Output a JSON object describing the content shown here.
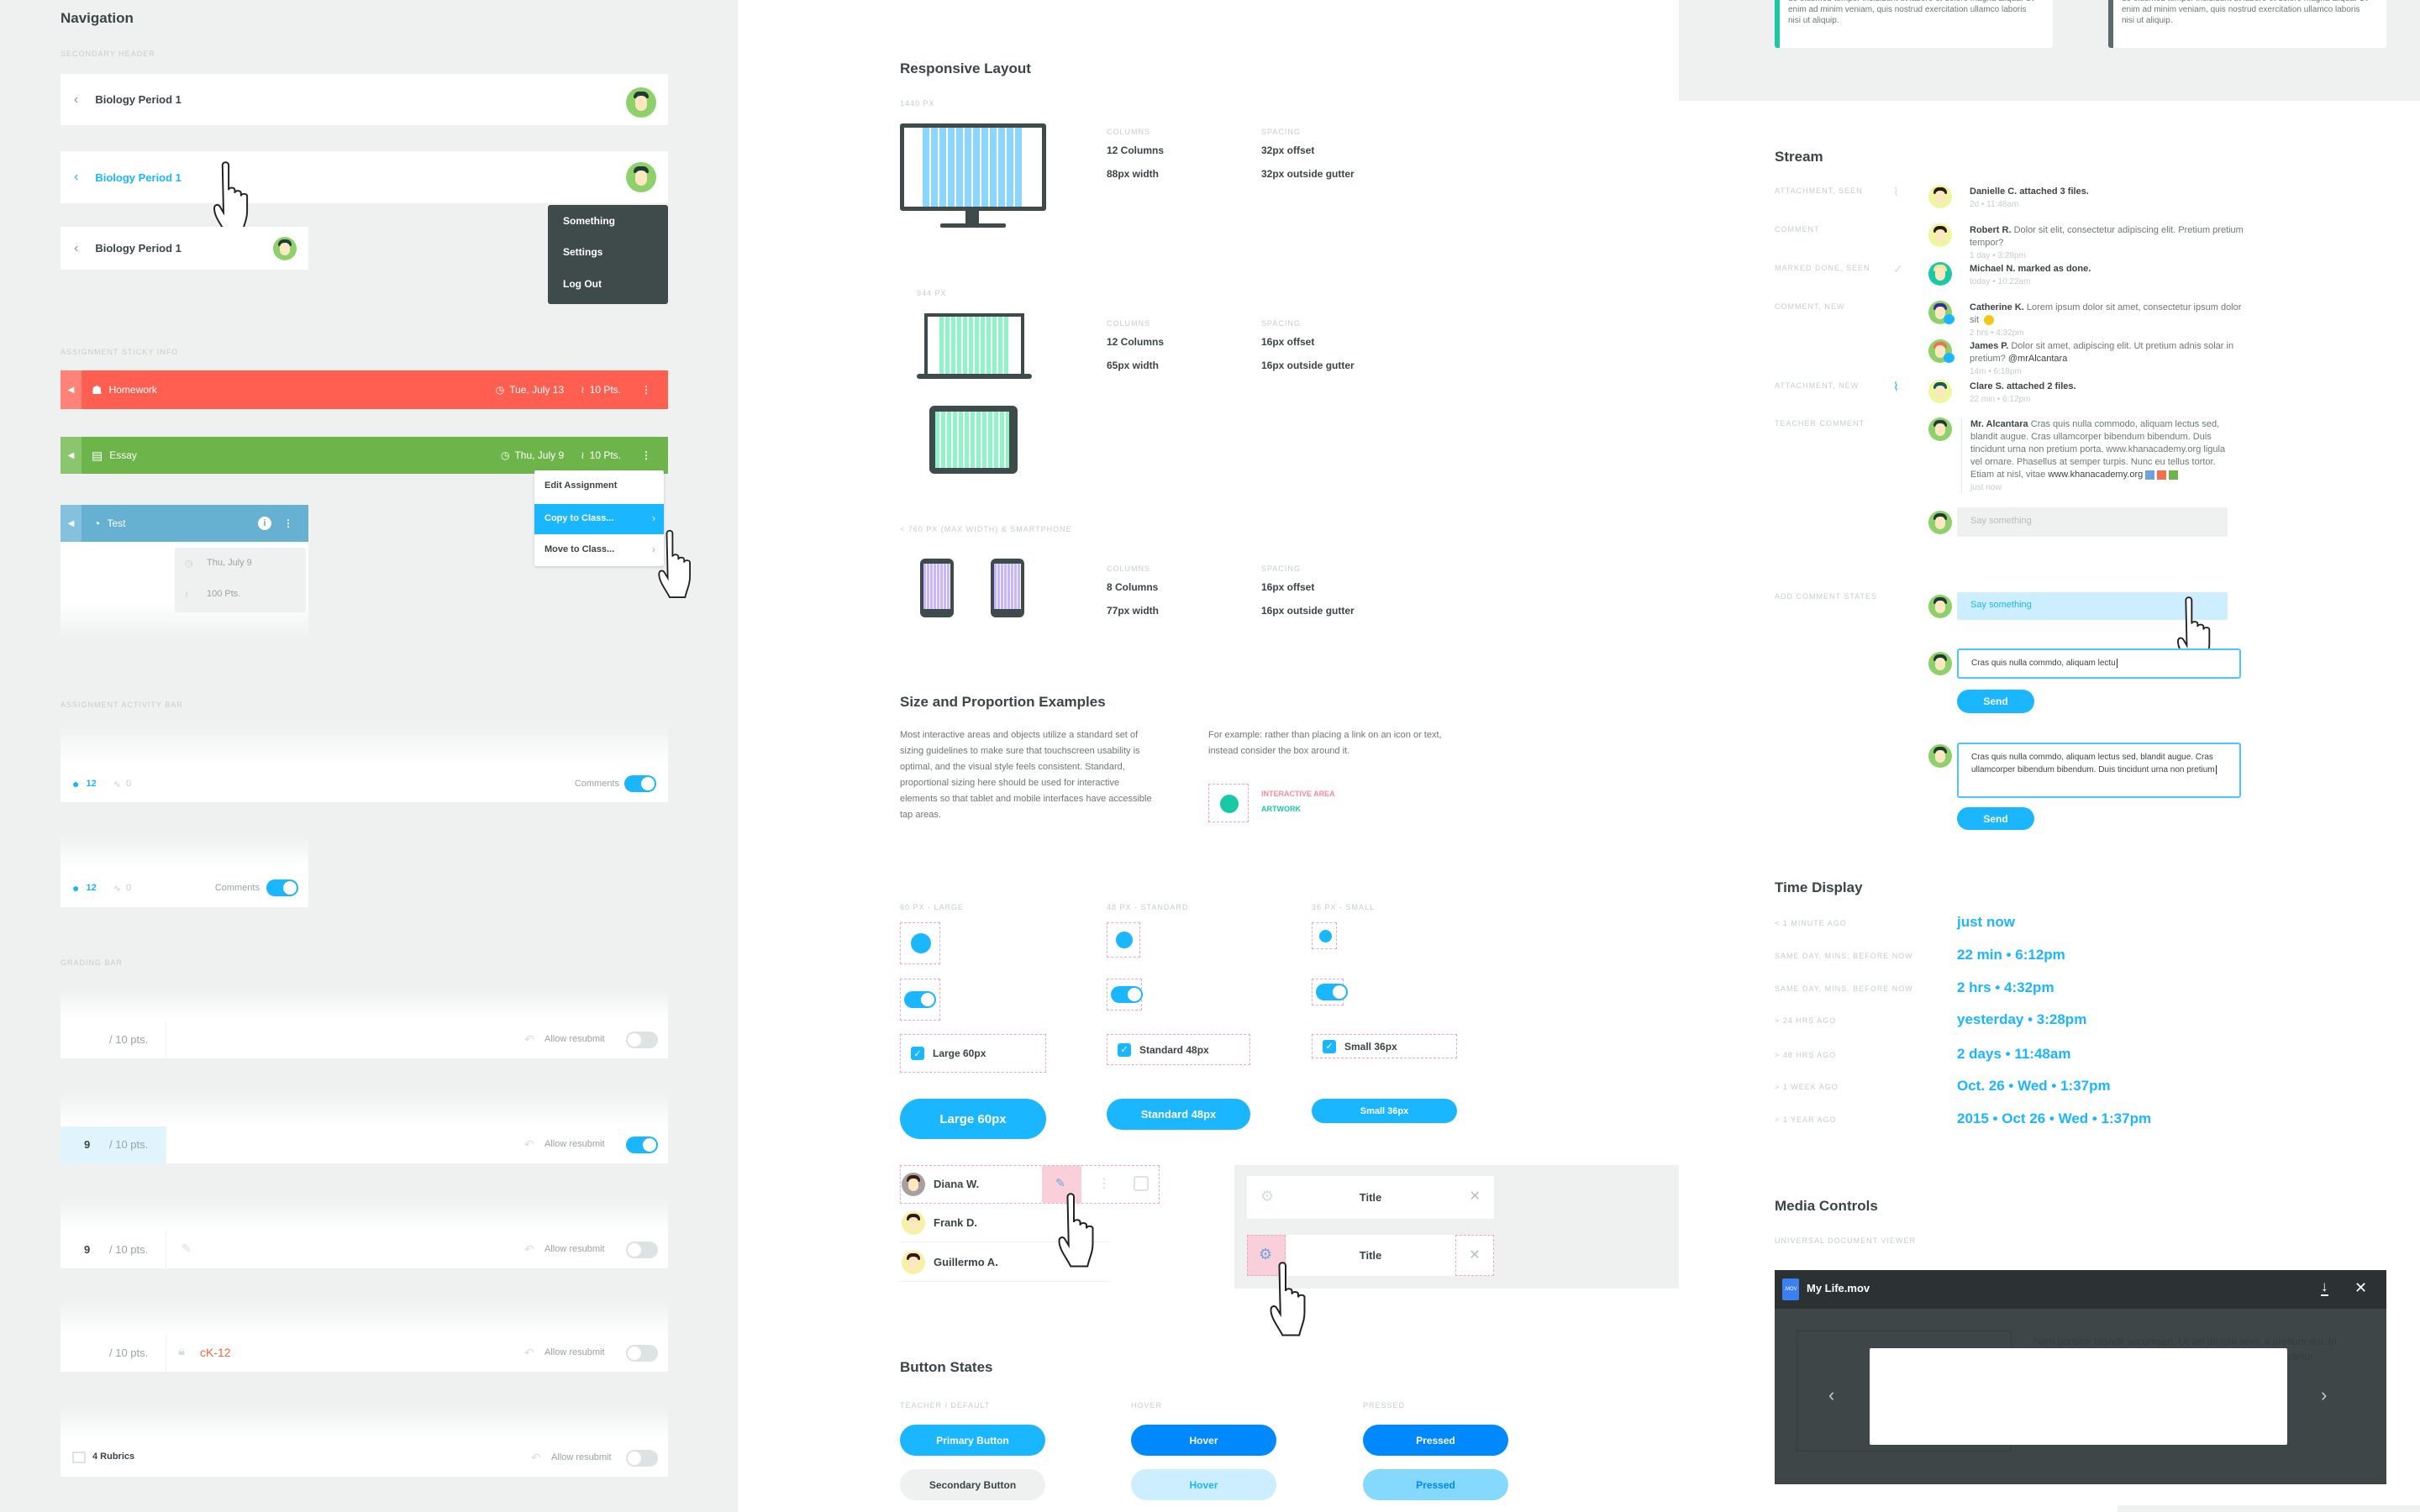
{
  "navigation": {
    "title": "Navigation",
    "secondary_header_label": "SECONDARY HEADER",
    "header_title": "Biology Period 1",
    "avatar_menu": [
      "Something",
      "Settings",
      "Log Out"
    ],
    "sticky_label": "ASSIGNMENT STICKY INFO",
    "homework": {
      "label": "Homework",
      "date": "Tue, July 13",
      "points": "10 Pts.",
      "color": "#ff5f50"
    },
    "essay": {
      "label": "Essay",
      "date": "Thu, July 9",
      "points": "10 Pts.",
      "color": "#6db54a"
    },
    "test": {
      "label": "Test",
      "color": "#66b0d1",
      "tooltip_date": "Thu, July 9",
      "tooltip_points": "100 Pts."
    },
    "assignment_menu": [
      "Edit Assignment",
      "Copy to Class...",
      "Move to Class..."
    ],
    "activity_label": "ASSIGNMENT ACTIVITY BAR",
    "activity": {
      "comments_count": "12",
      "activity_count": "0",
      "comments_label": "Comments"
    },
    "grading_label": "GRADING BAR",
    "grading": {
      "out_of": "/ 10 pts.",
      "score": "9",
      "allow_resubmit": "Allow resubmit",
      "ck12": "cK-12",
      "rubrics": "4 Rubrics"
    }
  },
  "responsive": {
    "title": "Responsive Layout",
    "columns_label": "COLUMNS",
    "spacing_label": "SPACING",
    "breakpoints": [
      {
        "label": "1440 PX",
        "columns": "12 Columns",
        "width": "88px width",
        "offset": "32px offset",
        "gutter": "32px outside gutter"
      },
      {
        "label": "944 PX",
        "columns": "12 Columns",
        "width": "65px width",
        "offset": "16px offset",
        "gutter": "16px outside gutter"
      },
      {
        "label": "< 760 PX (MAX WIDTH) & SMARTPHONE",
        "columns": "8 Columns",
        "width": "77px width",
        "offset": "16px offset",
        "gutter": "16px outside gutter"
      }
    ]
  },
  "sizing": {
    "title": "Size and Proportion Examples",
    "paragraph": "Most interactive areas and objects utilize a standard set of sizing guidelines to make sure that touchscreen usability is optimal, and the visual style feels consistent. Standard, proportional sizing here should be used for interactive elements so that tablet and mobile interfaces have accessible tap areas.",
    "example": "For example: rather than placing a link on an icon or text, instead consider the box around it.",
    "interactive_area": "INTERACTIVE AREA",
    "artwork": "ARTWORK",
    "sizes": [
      {
        "label": "60 PX - LARGE",
        "checkbox": "Large 60px",
        "button": "Large 60px"
      },
      {
        "label": "48 PX - STANDARD",
        "checkbox": "Standard 48px",
        "button": "Standard 48px"
      },
      {
        "label": "36 PX - SMALL",
        "checkbox": "Small 36px",
        "button": "Small 36px"
      }
    ],
    "students": [
      "Diana W.",
      "Frank D.",
      "Guillermo A."
    ],
    "card_title": "Title"
  },
  "button_states": {
    "title": "Button States",
    "labels": [
      "TEACHER / DEFAULT",
      "HOVER",
      "PRESSED"
    ],
    "primary": [
      "Primary Button",
      "Hover",
      "Pressed"
    ],
    "secondary": [
      "Secondary Button",
      "Hover",
      "Pressed"
    ]
  },
  "cards_text": "do eiusmod tempor incididunt ut labore et dolore magna aliqua. Ut enim ad minim veniam, quis nostrud exercitation ullamco laboris nisi ut aliquip.",
  "stream": {
    "title": "Stream",
    "items": [
      {
        "label": "ATTACHMENT, SEEN",
        "name": "Danielle C.",
        "text": "attached 3 files.",
        "time": "2d • 11:48am"
      },
      {
        "label": "COMMENT",
        "name": "Robert R.",
        "text": "Dolor sit elit, consectetur adipiscing elit. Pretium pretium tempor?",
        "time": "1 day • 3:28pm"
      },
      {
        "label": "MARKED DONE, SEEN",
        "name": "Michael N.",
        "text": "marked as done.",
        "time": "today • 10:22am"
      },
      {
        "label": "COMMENT, NEW",
        "name": "Catherine K.",
        "text": "Lorem ipsum dolor sit amet, consectetur ipsum dolor sit",
        "time": "2 hrs • 4:32pm"
      },
      {
        "label": "",
        "name": "James P.",
        "text": "Dolor sit amet, adipiscing elit. Ut pretium adnis solar in pretium?",
        "mention": "@mrAlcantara",
        "time": "14m • 6:18pm"
      },
      {
        "label": "ATTACHMENT, NEW",
        "name": "Clare S.",
        "text": "attached 2 files.",
        "time": "22 min • 6:12pm"
      },
      {
        "label": "TEACHER COMMENT",
        "name": "Mr. Alcantara",
        "text": "Cras quis nulla commodo, aliquam lectus sed, blandit augue. Cras ullamcorper bibendum bibendum. Duis tincidunt urna non pretium porta. www.khanacademy.org ligula vel ornare. Phasellus at semper turpis. Nunc eu tellus tortor. Etiam at nisl, vitae",
        "link": "www.khanacademy.org",
        "time": "just now"
      }
    ],
    "placeholder": "Say something",
    "add_comment_label": "ADD COMMENT STATES",
    "typing_value": "Cras quis nulla commdo, aliquam lectu",
    "textarea_value": "Cras quis nulla commdo, aliquam lectus sed, blandit augue. Cras ullamcorper bibendum bibendum. Duis tincidunt urna non pretium",
    "send_label": "Send"
  },
  "time_display": {
    "title": "Time Display",
    "rows": [
      {
        "label": "< 1 MINUTE AGO",
        "value": "just now"
      },
      {
        "label": "SAME DAY, MINS. BEFORE NOW",
        "value": "22 min • 6:12pm"
      },
      {
        "label": "SAME DAY, MINS. BEFORE NOW",
        "value": "2 hrs • 4:32pm"
      },
      {
        "label": "> 24 HRS AGO",
        "value": "yesterday • 3:28pm"
      },
      {
        "label": "> 48 HRS AGO",
        "value": "2 days • 11:48am"
      },
      {
        "label": "> 1 WEEK AGO",
        "value": "Oct. 26 • Wed • 1:37pm"
      },
      {
        "label": "> 1 YEAR AGO",
        "value": "2015 • Oct 26 • Wed • 1:37pm"
      }
    ]
  },
  "media": {
    "title": "Media Controls",
    "label": "UNIVERSAL DOCUMENT VIEWER",
    "file_name": "My Life.mov",
    "file_ext": ".MOV",
    "bg_text": "Nam porttitor blandit accumsan. Ut vel dictum sem, a pretium dui. In malesuada enim in dolor euismod, id commodo mi consectetur."
  },
  "colors": {
    "accent": "#1ab6ff",
    "hover": "#0088ff",
    "teal": "#19c9a6",
    "pink_area": "#f4a6b8"
  }
}
